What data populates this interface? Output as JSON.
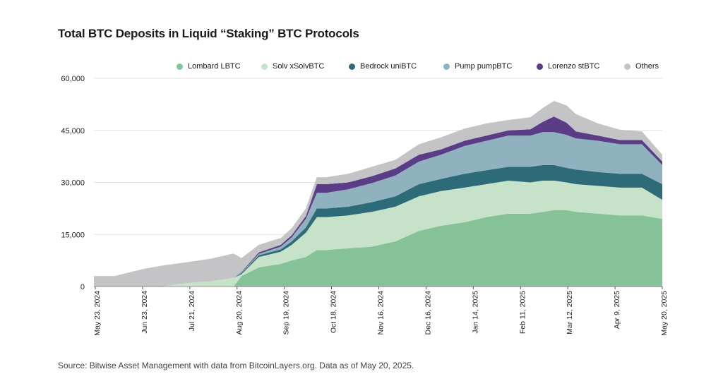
{
  "title": "Total BTC Deposits in Liquid “Staking” BTC Protocols",
  "source": "Source: Bitwise Asset Management with data from BitcoinLayers.org. Data as of May 20, 2025.",
  "chart_data": {
    "type": "area",
    "stacked": true,
    "title": "Total BTC Deposits in Liquid “Staking” BTC Protocols",
    "xlabel": "",
    "ylabel": "",
    "ylim": [
      0,
      60000
    ],
    "yticks": [
      "60,000",
      "45,000",
      "30,000",
      "15,000",
      "0"
    ],
    "ytick_values": [
      60000,
      45000,
      30000,
      15000,
      0
    ],
    "grid": true,
    "legend": "top-right",
    "xtick_labels": [
      "May 23, 2024",
      "Jun 23, 2024",
      "Jul 21, 2024",
      "Aug 20, 2024",
      "Sep 19, 2024",
      "Oct 18, 2024",
      "Nov 16, 2024",
      "Dec 16, 2024",
      "Jan 14, 2025",
      "Feb 11, 2025",
      "Mar 12, 2025",
      "Apr 9, 2025",
      "May 20, 2025"
    ],
    "x": [
      "2024-05-23",
      "2024-06-05",
      "2024-06-23",
      "2024-07-05",
      "2024-07-21",
      "2024-08-05",
      "2024-08-20",
      "2024-08-25",
      "2024-09-05",
      "2024-09-19",
      "2024-09-26",
      "2024-10-05",
      "2024-10-12",
      "2024-10-18",
      "2024-11-01",
      "2024-11-16",
      "2024-12-01",
      "2024-12-16",
      "2024-12-30",
      "2025-01-14",
      "2025-01-28",
      "2025-02-11",
      "2025-02-25",
      "2025-03-05",
      "2025-03-12",
      "2025-03-20",
      "2025-03-26",
      "2025-04-09",
      "2025-04-23",
      "2025-05-07",
      "2025-05-20"
    ],
    "series": [
      {
        "name": "Lombard LBTC",
        "color": "#86c298",
        "values": [
          0,
          0,
          0,
          0,
          0,
          0,
          0,
          3000,
          5500,
          6500,
          7500,
          8500,
          10500,
          10500,
          11000,
          11500,
          13000,
          16000,
          17500,
          18500,
          20000,
          21000,
          21000,
          21500,
          22000,
          22000,
          21500,
          21000,
          20500,
          20500,
          19500
        ]
      },
      {
        "name": "Solv xSolvBTC",
        "color": "#c6e2c8",
        "values": [
          0,
          0,
          0,
          0,
          1000,
          1500,
          2500,
          500,
          3000,
          3500,
          4500,
          7000,
          9500,
          9500,
          9500,
          10000,
          10000,
          10000,
          10000,
          10000,
          9500,
          9500,
          9000,
          9000,
          8500,
          8000,
          8000,
          8000,
          8000,
          8000,
          5500
        ]
      },
      {
        "name": "Bedrock uniBTC",
        "color": "#2e6b78",
        "values": [
          0,
          0,
          0,
          0,
          0,
          0,
          0,
          300,
          500,
          700,
          1000,
          1500,
          2500,
          2500,
          2500,
          2800,
          3000,
          3500,
          3500,
          4000,
          4000,
          4000,
          4500,
          4500,
          4500,
          4200,
          4200,
          4000,
          4000,
          4000,
          4500
        ]
      },
      {
        "name": "Pump pumpBTC",
        "color": "#8fb2be",
        "values": [
          0,
          0,
          0,
          0,
          0,
          0,
          0,
          200,
          400,
          800,
          1200,
          2500,
          4500,
          4500,
          5000,
          5500,
          6000,
          6500,
          7000,
          8000,
          8500,
          9000,
          9000,
          9500,
          9500,
          9500,
          9000,
          9000,
          8500,
          8500,
          5500
        ]
      },
      {
        "name": "Lorenzo stBTC",
        "color": "#5a3d86",
        "values": [
          0,
          0,
          0,
          0,
          0,
          0,
          0,
          200,
          400,
          500,
          600,
          800,
          2500,
          2500,
          2000,
          2000,
          2000,
          2000,
          1500,
          1500,
          1500,
          1500,
          1800,
          3000,
          4500,
          3500,
          2000,
          1500,
          1200,
          1200,
          1000
        ]
      },
      {
        "name": "Others",
        "color": "#c4c3c6",
        "values": [
          3000,
          3000,
          5000,
          6000,
          6000,
          6500,
          7000,
          4000,
          2200,
          2000,
          2000,
          2200,
          2000,
          2000,
          2500,
          2700,
          2500,
          3000,
          3500,
          3500,
          3500,
          3000,
          3500,
          4000,
          4500,
          5000,
          5000,
          3500,
          3000,
          2500,
          2000
        ]
      }
    ]
  }
}
